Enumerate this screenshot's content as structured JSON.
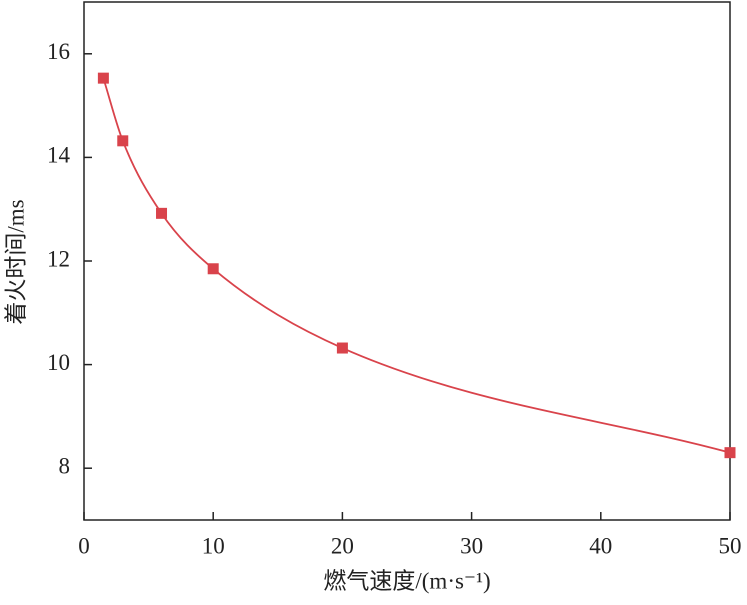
{
  "chart_data": {
    "type": "line",
    "x_label": "燃气速度/(m·s⁻¹)",
    "y_label": "着火时间/ms",
    "series": [
      {
        "color": "#d9434b",
        "marker": "square",
        "smooth": true,
        "x": [
          1.5,
          3,
          6,
          10,
          20,
          50
        ],
        "values": [
          15.53,
          14.32,
          12.92,
          11.85,
          10.32,
          8.3
        ]
      }
    ],
    "xlim": [
      0,
      50
    ],
    "xticks": [
      0,
      10,
      20,
      30,
      40,
      50
    ],
    "ylim": [
      7,
      17
    ],
    "yticks": [
      8,
      10,
      12,
      14,
      16
    ],
    "grid": false
  }
}
